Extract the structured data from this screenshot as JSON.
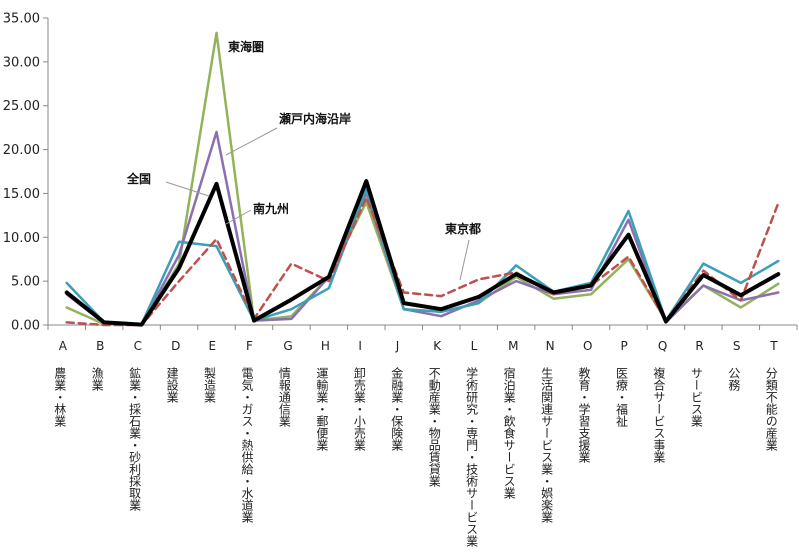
{
  "chart_data": {
    "type": "line",
    "ylim": [
      0,
      35
    ],
    "yticks": [
      "0.00",
      "5.00",
      "10.00",
      "15.00",
      "20.00",
      "25.00",
      "30.00",
      "35.00"
    ],
    "grid": false,
    "categories": [
      {
        "letter": "A",
        "name": "農業・林業"
      },
      {
        "letter": "B",
        "name": "漁業"
      },
      {
        "letter": "C",
        "name": "鉱業・採石業・砂利採取業"
      },
      {
        "letter": "D",
        "name": "建設業"
      },
      {
        "letter": "E",
        "name": "製造業"
      },
      {
        "letter": "F",
        "name": "電気・ガス・熱供給・水道業"
      },
      {
        "letter": "G",
        "name": "情報通信業"
      },
      {
        "letter": "H",
        "name": "運輸業・郵便業"
      },
      {
        "letter": "I",
        "name": "卸売業・小売業"
      },
      {
        "letter": "J",
        "name": "金融業・保険業"
      },
      {
        "letter": "K",
        "name": "不動産業・物品賃貸業"
      },
      {
        "letter": "L",
        "name": "学術研究・専門・技術サービス業"
      },
      {
        "letter": "M",
        "name": "宿泊業・飲食サービス業"
      },
      {
        "letter": "N",
        "name": "生活関連サービス業・娯楽業"
      },
      {
        "letter": "O",
        "name": "教育・学習支援業"
      },
      {
        "letter": "P",
        "name": "医療・福祉"
      },
      {
        "letter": "Q",
        "name": "複合サービス事業"
      },
      {
        "letter": "R",
        "name": "サービス業"
      },
      {
        "letter": "S",
        "name": "公務"
      },
      {
        "letter": "T",
        "name": "分類不能の産業"
      }
    ],
    "series": [
      {
        "name": "東海圏",
        "color": "#92b35a",
        "width": 2.5,
        "dash": "",
        "values": [
          2.0,
          0.1,
          0.05,
          7.0,
          33.3,
          0.5,
          1.0,
          5.5,
          14.0,
          1.8,
          1.5,
          2.5,
          5.5,
          3.0,
          3.5,
          7.5,
          0.5,
          4.5,
          2.0,
          4.7
        ]
      },
      {
        "name": "瀬戸内海沿岸",
        "color": "#8b6fb0",
        "width": 2.5,
        "dash": "",
        "values": [
          3.5,
          0.2,
          0.05,
          8.0,
          22.0,
          0.5,
          0.7,
          5.5,
          15.0,
          1.8,
          1.0,
          2.8,
          5.0,
          3.5,
          4.0,
          12.0,
          0.3,
          4.5,
          2.8,
          3.7
        ]
      },
      {
        "name": "南九州",
        "color": "#3b9fb8",
        "width": 2.5,
        "dash": "",
        "values": [
          4.8,
          0.3,
          0.1,
          9.5,
          9.0,
          0.5,
          1.8,
          4.2,
          15.5,
          1.8,
          1.5,
          2.5,
          6.8,
          3.8,
          4.8,
          13.0,
          0.5,
          7.0,
          4.8,
          7.3
        ]
      },
      {
        "name": "東京都",
        "color": "#c0504d",
        "width": 2.5,
        "dash": "7,5",
        "values": [
          0.3,
          0.0,
          0.0,
          5.0,
          9.8,
          0.7,
          7.0,
          5.0,
          14.5,
          3.7,
          3.3,
          5.2,
          6.0,
          3.5,
          4.5,
          7.8,
          0.5,
          6.2,
          2.8,
          13.9
        ]
      },
      {
        "name": "全国",
        "color": "#000000",
        "width": 4,
        "dash": "",
        "values": [
          3.7,
          0.3,
          0.05,
          6.5,
          16.1,
          0.5,
          2.9,
          5.5,
          16.4,
          2.5,
          1.8,
          3.2,
          5.8,
          3.7,
          4.5,
          10.3,
          0.4,
          5.7,
          3.4,
          5.8
        ]
      }
    ],
    "annotations": [
      {
        "text": "東海圏"
      },
      {
        "text": "瀬戸内海沿岸"
      },
      {
        "text": "全国"
      },
      {
        "text": "南九州"
      },
      {
        "text": "東京都"
      }
    ]
  }
}
